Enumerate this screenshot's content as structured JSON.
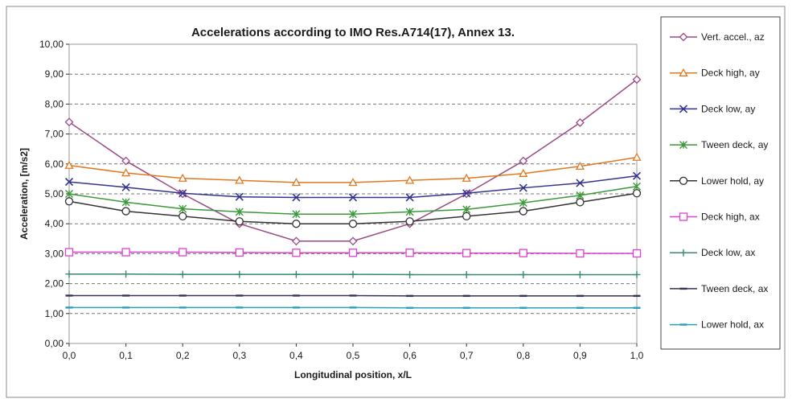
{
  "chart_data": {
    "type": "line",
    "title": "Accelerations according to IMO Res.A714(17), Annex 13.",
    "xlabel": "Longitudinal position,  x/L",
    "ylabel": "Acceleration,  [m/s2]",
    "x": [
      0.0,
      0.1,
      0.2,
      0.3,
      0.4,
      0.5,
      0.6,
      0.7,
      0.8,
      0.9,
      1.0
    ],
    "x_tick_labels": [
      "0,0",
      "0,1",
      "0,2",
      "0,3",
      "0,4",
      "0,5",
      "0,6",
      "0,7",
      "0,8",
      "0,9",
      "1,0"
    ],
    "y_ticks": [
      0,
      1,
      2,
      3,
      4,
      5,
      6,
      7,
      8,
      9,
      10
    ],
    "y_tick_labels": [
      "0,00",
      "1,00",
      "2,00",
      "3,00",
      "4,00",
      "5,00",
      "6,00",
      "7,00",
      "8,00",
      "9,00",
      "10,00"
    ],
    "xlim": [
      0,
      1
    ],
    "ylim": [
      0,
      10
    ],
    "grid": "horizontal dashed",
    "legend_position": "right",
    "series": [
      {
        "name": "Vert. accel., az",
        "color": "#9b4a86",
        "marker": "diamond",
        "values": [
          7.4,
          6.1,
          5.0,
          4.0,
          3.42,
          3.42,
          4.0,
          5.0,
          6.1,
          7.38,
          8.82
        ]
      },
      {
        "name": "Deck high, ay",
        "color": "#e07820",
        "marker": "triangle",
        "values": [
          5.95,
          5.7,
          5.52,
          5.45,
          5.38,
          5.38,
          5.45,
          5.52,
          5.68,
          5.92,
          6.22
        ]
      },
      {
        "name": "Deck low, ay",
        "color": "#33348e",
        "marker": "x",
        "values": [
          5.4,
          5.22,
          5.02,
          4.9,
          4.88,
          4.88,
          4.88,
          5.02,
          5.2,
          5.36,
          5.6
        ]
      },
      {
        "name": "Tween deck, ay",
        "color": "#3a9a3a",
        "marker": "star",
        "values": [
          5.0,
          4.72,
          4.5,
          4.4,
          4.32,
          4.32,
          4.4,
          4.48,
          4.7,
          4.95,
          5.25
        ]
      },
      {
        "name": "Lower hold, ay",
        "color": "#333333",
        "marker": "circle",
        "values": [
          4.75,
          4.42,
          4.25,
          4.08,
          4.0,
          4.0,
          4.08,
          4.25,
          4.42,
          4.72,
          5.02
        ]
      },
      {
        "name": "Deck high, ax",
        "color": "#e040d0",
        "marker": "square",
        "values": [
          3.05,
          3.05,
          3.05,
          3.04,
          3.03,
          3.03,
          3.03,
          3.02,
          3.02,
          3.01,
          3.01
        ]
      },
      {
        "name": "Deck low, ax",
        "color": "#3a8a6a",
        "marker": "plus",
        "values": [
          2.32,
          2.32,
          2.31,
          2.31,
          2.31,
          2.31,
          2.3,
          2.3,
          2.3,
          2.3,
          2.3
        ]
      },
      {
        "name": "Tween deck, ax",
        "color": "#333355",
        "marker": "dash",
        "values": [
          1.6,
          1.6,
          1.6,
          1.6,
          1.6,
          1.6,
          1.59,
          1.59,
          1.59,
          1.59,
          1.59
        ]
      },
      {
        "name": "Lower hold, ax",
        "color": "#2aa0b8",
        "marker": "dash",
        "values": [
          1.2,
          1.2,
          1.2,
          1.2,
          1.2,
          1.2,
          1.19,
          1.19,
          1.19,
          1.19,
          1.19
        ]
      }
    ]
  }
}
